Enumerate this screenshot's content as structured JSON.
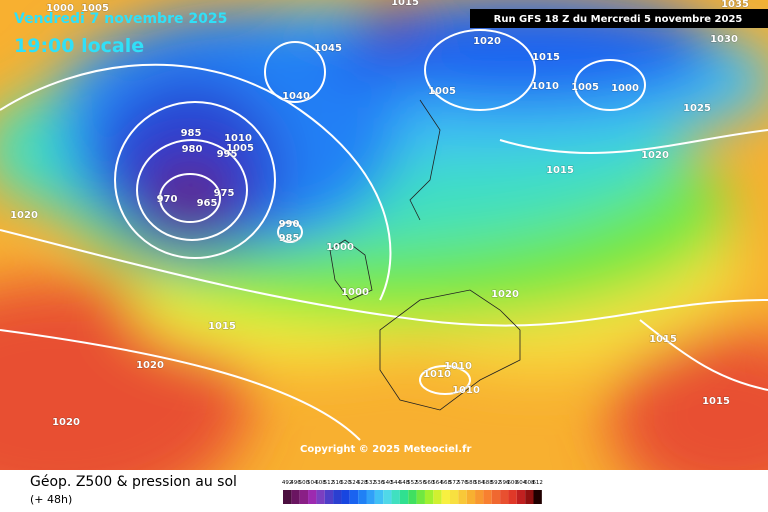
{
  "header": {
    "date": "Vendredi 7 novembre 2025",
    "time": "19:00 locale",
    "run": "Run GFS 18 Z du Mercredi 5 novembre 2025"
  },
  "copyright": "Copyright © 2025 Meteociel.fr",
  "footer": {
    "title": "Géop. Z500 & pression au sol",
    "lead": "(+ 48h)"
  },
  "isobar_labels": [
    1000,
    1005,
    1015,
    1035,
    1020,
    1030,
    1045,
    1015,
    1010,
    1005,
    1000,
    1005,
    1040,
    1025,
    985,
    980,
    1010,
    1005,
    995,
    1020,
    1015,
    970,
    965,
    975,
    990,
    985,
    1000,
    1020,
    1000,
    1020,
    1015,
    1015,
    1020,
    1010,
    1010,
    1010,
    1015,
    1020
  ],
  "color_scale": {
    "labels": [
      492,
      496,
      500,
      504,
      508,
      512,
      516,
      520,
      524,
      528,
      532,
      536,
      540,
      544,
      548,
      552,
      556,
      560,
      564,
      568,
      572,
      576,
      580,
      584,
      588,
      592,
      596,
      600,
      604,
      608,
      612
    ],
    "colors": [
      "#4b0f3f",
      "#6a1561",
      "#8a1f86",
      "#9d2ab0",
      "#7b3fc0",
      "#4f3fc8",
      "#2b3fd0",
      "#1846e0",
      "#1a63f0",
      "#2080f5",
      "#30a0f8",
      "#40c0f5",
      "#50d8e8",
      "#40e0c0",
      "#30e090",
      "#40e060",
      "#70e840",
      "#a0f030",
      "#d0f030",
      "#f8f040",
      "#f8e040",
      "#f8c838",
      "#f8b030",
      "#f89830",
      "#f88030",
      "#f06830",
      "#e85030",
      "#e03828",
      "#c02020",
      "#901010",
      "#200000"
    ]
  }
}
